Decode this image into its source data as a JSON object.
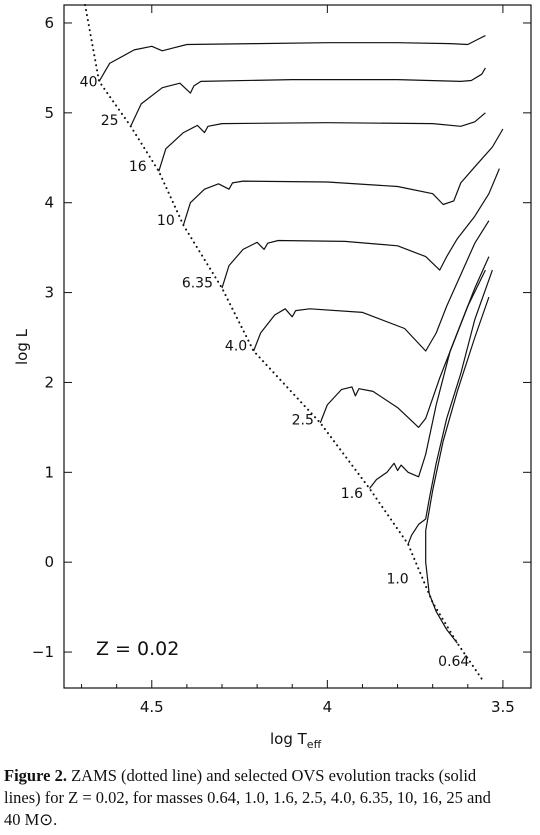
{
  "chart_data": {
    "type": "line",
    "xlabel": "log T_eff",
    "xlabel_main": "log T",
    "xlabel_sub": "eff",
    "ylabel": "log L",
    "xlim": [
      4.75,
      3.42
    ],
    "ylim": [
      -1.4,
      6.2
    ],
    "x_reversed": true,
    "x_ticks": [
      4.5,
      4.0,
      3.5
    ],
    "x_tick_labels": [
      "4.5",
      "4",
      "3.5"
    ],
    "y_ticks": [
      -1,
      0,
      1,
      2,
      3,
      4,
      5,
      6
    ],
    "y_tick_labels": [
      "−1",
      "0",
      "1",
      "2",
      "3",
      "4",
      "5",
      "6"
    ],
    "annotation": "Z  =  0.02",
    "zams": {
      "style": "dotted",
      "points": [
        [
          4.69,
          6.2
        ],
        [
          4.65,
          5.35
        ],
        [
          4.56,
          4.85
        ],
        [
          4.48,
          4.35
        ],
        [
          4.41,
          3.75
        ],
        [
          4.3,
          3.05
        ],
        [
          4.21,
          2.35
        ],
        [
          4.02,
          1.55
        ],
        [
          3.88,
          0.82
        ],
        [
          3.77,
          0.2
        ],
        [
          3.7,
          -0.45
        ],
        [
          3.63,
          -0.9
        ],
        [
          3.56,
          -1.3
        ]
      ]
    },
    "series": [
      {
        "label": "40",
        "label_pos": [
          4.68,
          5.35
        ],
        "points": [
          [
            4.65,
            5.35
          ],
          [
            4.62,
            5.55
          ],
          [
            4.55,
            5.7
          ],
          [
            4.5,
            5.74
          ],
          [
            4.47,
            5.69
          ],
          [
            4.44,
            5.72
          ],
          [
            4.4,
            5.76
          ],
          [
            4.2,
            5.77
          ],
          [
            4.0,
            5.78
          ],
          [
            3.8,
            5.78
          ],
          [
            3.65,
            5.77
          ],
          [
            3.6,
            5.76
          ],
          [
            3.57,
            5.82
          ],
          [
            3.55,
            5.86
          ]
        ]
      },
      {
        "label": "25",
        "label_pos": [
          4.62,
          4.92
        ],
        "points": [
          [
            4.56,
            4.85
          ],
          [
            4.53,
            5.1
          ],
          [
            4.47,
            5.28
          ],
          [
            4.42,
            5.33
          ],
          [
            4.39,
            5.22
          ],
          [
            4.38,
            5.3
          ],
          [
            4.36,
            5.35
          ],
          [
            4.1,
            5.37
          ],
          [
            3.8,
            5.37
          ],
          [
            3.62,
            5.35
          ],
          [
            3.59,
            5.36
          ],
          [
            3.56,
            5.43
          ],
          [
            3.55,
            5.5
          ]
        ]
      },
      {
        "label": "16",
        "label_pos": [
          4.54,
          4.41
        ],
        "points": [
          [
            4.48,
            4.35
          ],
          [
            4.46,
            4.6
          ],
          [
            4.41,
            4.78
          ],
          [
            4.37,
            4.86
          ],
          [
            4.35,
            4.78
          ],
          [
            4.34,
            4.85
          ],
          [
            4.3,
            4.88
          ],
          [
            4.0,
            4.89
          ],
          [
            3.7,
            4.88
          ],
          [
            3.62,
            4.85
          ],
          [
            3.58,
            4.9
          ],
          [
            3.55,
            5.0
          ]
        ]
      },
      {
        "label": "10",
        "label_pos": [
          4.46,
          3.81
        ],
        "points": [
          [
            4.41,
            3.75
          ],
          [
            4.39,
            4.0
          ],
          [
            4.35,
            4.15
          ],
          [
            4.31,
            4.21
          ],
          [
            4.28,
            4.15
          ],
          [
            4.27,
            4.22
          ],
          [
            4.24,
            4.24
          ],
          [
            4.0,
            4.23
          ],
          [
            3.8,
            4.18
          ],
          [
            3.7,
            4.1
          ],
          [
            3.67,
            3.98
          ],
          [
            3.64,
            4.02
          ],
          [
            3.62,
            4.22
          ],
          [
            3.58,
            4.4
          ],
          [
            3.53,
            4.62
          ],
          [
            3.5,
            4.82
          ]
        ]
      },
      {
        "label": "6.35",
        "label_pos": [
          4.37,
          3.11
        ],
        "points": [
          [
            4.3,
            3.05
          ],
          [
            4.28,
            3.3
          ],
          [
            4.24,
            3.48
          ],
          [
            4.2,
            3.56
          ],
          [
            4.18,
            3.48
          ],
          [
            4.17,
            3.55
          ],
          [
            4.14,
            3.58
          ],
          [
            3.95,
            3.57
          ],
          [
            3.8,
            3.52
          ],
          [
            3.72,
            3.4
          ],
          [
            3.68,
            3.25
          ],
          [
            3.66,
            3.4
          ],
          [
            3.63,
            3.6
          ],
          [
            3.58,
            3.85
          ],
          [
            3.54,
            4.1
          ],
          [
            3.51,
            4.38
          ]
        ]
      },
      {
        "label": "4.0",
        "label_pos": [
          4.26,
          2.41
        ],
        "points": [
          [
            4.21,
            2.35
          ],
          [
            4.19,
            2.55
          ],
          [
            4.15,
            2.75
          ],
          [
            4.12,
            2.82
          ],
          [
            4.1,
            2.73
          ],
          [
            4.09,
            2.8
          ],
          [
            4.05,
            2.82
          ],
          [
            3.9,
            2.78
          ],
          [
            3.78,
            2.6
          ],
          [
            3.72,
            2.35
          ],
          [
            3.69,
            2.55
          ],
          [
            3.66,
            2.85
          ],
          [
            3.62,
            3.2
          ],
          [
            3.58,
            3.55
          ],
          [
            3.54,
            3.8
          ]
        ]
      },
      {
        "label": "2.5",
        "label_pos": [
          4.07,
          1.59
        ],
        "points": [
          [
            4.02,
            1.55
          ],
          [
            4.0,
            1.75
          ],
          [
            3.96,
            1.92
          ],
          [
            3.93,
            1.95
          ],
          [
            3.92,
            1.85
          ],
          [
            3.91,
            1.93
          ],
          [
            3.87,
            1.9
          ],
          [
            3.8,
            1.72
          ],
          [
            3.74,
            1.5
          ],
          [
            3.72,
            1.6
          ],
          [
            3.68,
            2.05
          ],
          [
            3.63,
            2.55
          ],
          [
            3.58,
            3.05
          ],
          [
            3.54,
            3.4
          ]
        ]
      },
      {
        "label": "1.6",
        "label_pos": [
          3.93,
          0.77
        ],
        "points": [
          [
            3.88,
            0.82
          ],
          [
            3.86,
            0.92
          ],
          [
            3.83,
            1.0
          ],
          [
            3.81,
            1.1
          ],
          [
            3.8,
            1.02
          ],
          [
            3.79,
            1.08
          ],
          [
            3.77,
            1.0
          ],
          [
            3.74,
            0.95
          ],
          [
            3.72,
            1.2
          ],
          [
            3.69,
            1.75
          ],
          [
            3.65,
            2.35
          ],
          [
            3.6,
            2.85
          ],
          [
            3.55,
            3.25
          ]
        ]
      },
      {
        "label": "1.0",
        "label_pos": [
          3.8,
          -0.18
        ],
        "points": [
          [
            3.77,
            0.2
          ],
          [
            3.76,
            0.3
          ],
          [
            3.74,
            0.42
          ],
          [
            3.72,
            0.48
          ],
          [
            3.71,
            0.7
          ],
          [
            3.69,
            1.1
          ],
          [
            3.66,
            1.6
          ],
          [
            3.62,
            2.1
          ],
          [
            3.58,
            2.7
          ],
          [
            3.53,
            3.25
          ]
        ]
      },
      {
        "label": "0.64",
        "label_pos": [
          3.64,
          -1.1
        ],
        "points": [
          [
            3.63,
            -0.9
          ],
          [
            3.66,
            -0.75
          ],
          [
            3.69,
            -0.55
          ],
          [
            3.71,
            -0.35
          ],
          [
            3.72,
            0.0
          ],
          [
            3.72,
            0.35
          ],
          [
            3.7,
            0.8
          ],
          [
            3.67,
            1.35
          ],
          [
            3.63,
            1.9
          ],
          [
            3.58,
            2.5
          ],
          [
            3.54,
            2.95
          ]
        ]
      }
    ]
  },
  "caption": {
    "bold": "Figure 2.",
    "line1": " ZAMS (dotted line) and selected OVS evolution tracks (solid",
    "line2": "lines) for Z = 0.02, for masses 0.64, 1.0, 1.6, 2.5, 4.0, 6.35, 10, 16, 25 and",
    "line3": "40 M⊙."
  }
}
